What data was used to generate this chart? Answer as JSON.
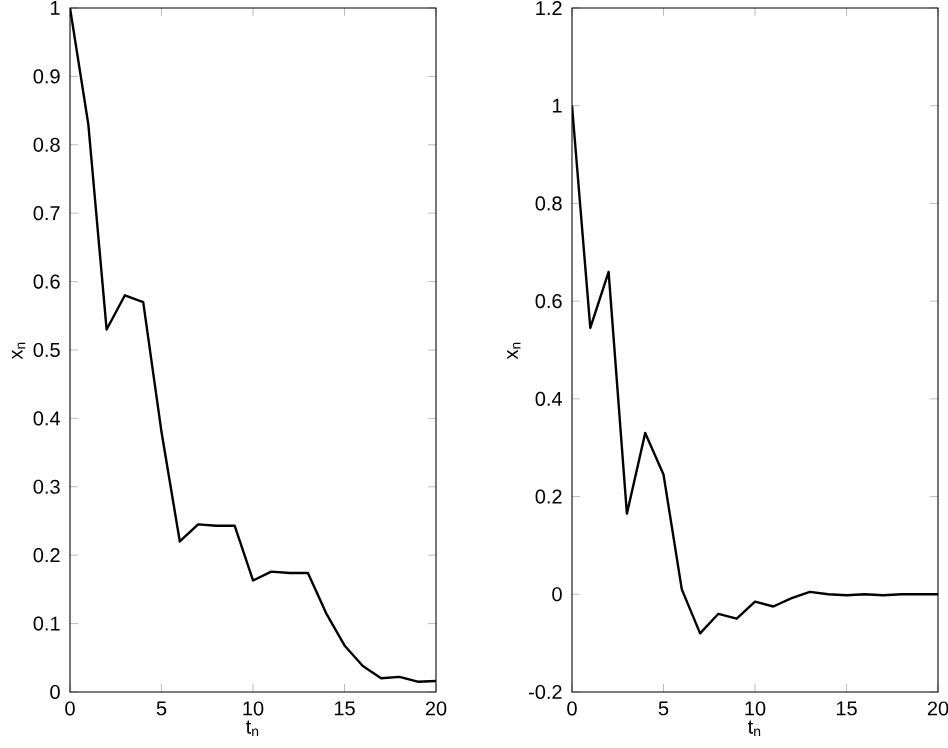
{
  "chart_data": [
    {
      "type": "line",
      "xlabel": "t$_{n}$",
      "ylabel": "x$_{n}$",
      "x": [
        0,
        1,
        2,
        3,
        4,
        5,
        6,
        7,
        8,
        9,
        10,
        11,
        12,
        13,
        14,
        15,
        16,
        17,
        18,
        19,
        20
      ],
      "series": [
        {
          "color": "#000000",
          "values": [
            1.0,
            0.83,
            0.53,
            0.58,
            0.57,
            0.38,
            0.22,
            0.245,
            0.243,
            0.243,
            0.163,
            0.176,
            0.174,
            0.174,
            0.115,
            0.068,
            0.038,
            0.02,
            0.022,
            0.015,
            0.016
          ]
        }
      ],
      "xlim": [
        0,
        20
      ],
      "ylim": [
        0,
        1
      ],
      "xticks": [
        0,
        5,
        10,
        15,
        20
      ],
      "yticks": [
        0,
        0.1,
        0.2,
        0.3,
        0.4,
        0.5,
        0.6,
        0.7,
        0.8,
        0.9,
        1
      ],
      "marker": "none",
      "line_style": "solid"
    },
    {
      "type": "line",
      "xlabel": "t$_{n}$",
      "ylabel": "x$_{n}$",
      "x": [
        0,
        1,
        2,
        3,
        4,
        5,
        6,
        7,
        8,
        9,
        10,
        11,
        12,
        13,
        14,
        15,
        16,
        17,
        18,
        19,
        20
      ],
      "series": [
        {
          "color": "#000000",
          "values": [
            1.0,
            0.545,
            0.66,
            0.165,
            0.33,
            0.245,
            0.01,
            -0.08,
            -0.04,
            -0.05,
            -0.015,
            -0.025,
            -0.008,
            0.005,
            0.0,
            -0.002,
            0.0,
            -0.002,
            0.0,
            0.0,
            0.0
          ]
        }
      ],
      "xlim": [
        0,
        20
      ],
      "ylim": [
        -0.2,
        1.2
      ],
      "xticks": [
        0,
        5,
        10,
        15,
        20
      ],
      "yticks": [
        -0.2,
        0,
        0.2,
        0.4,
        0.6,
        0.8,
        1,
        1.2
      ],
      "marker": "none",
      "line_style": "solid"
    }
  ]
}
